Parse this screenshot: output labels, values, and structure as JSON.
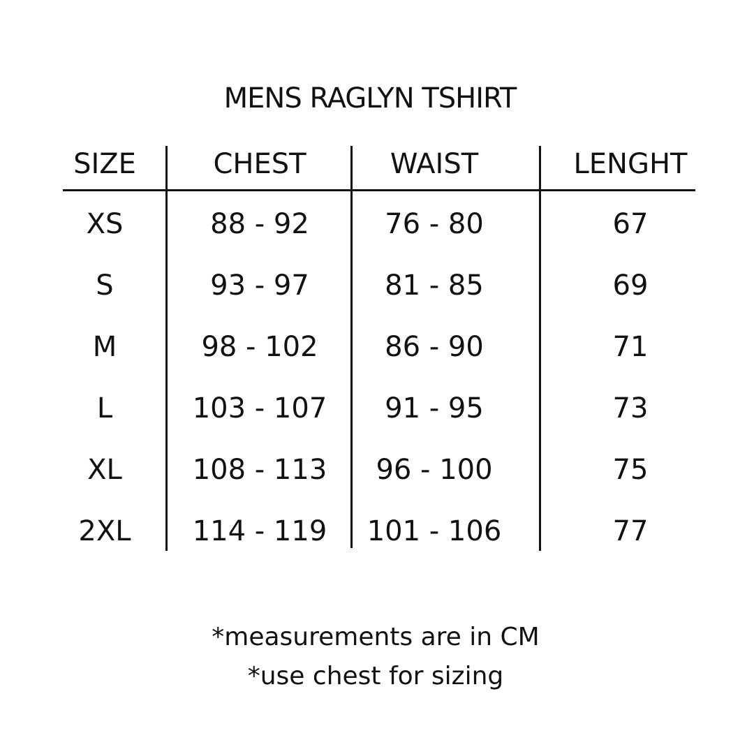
{
  "title": "MENS RAGLYN TSHIRT",
  "headers": [
    "SIZE",
    "CHEST",
    "WAIST",
    "LENGHT"
  ],
  "rows": [
    [
      "XS",
      "88 - 92",
      "76 - 80",
      "67"
    ],
    [
      "S",
      "93 - 97",
      "81 - 85",
      "69"
    ],
    [
      "M",
      "98 - 102",
      "86 - 90",
      "71"
    ],
    [
      "L",
      "103 - 107",
      "91 - 95",
      "73"
    ],
    [
      "XL",
      "108 - 113",
      "96 - 100",
      "75"
    ],
    [
      "2XL",
      "114 - 119",
      "101 - 106",
      "77"
    ]
  ],
  "notes": [
    "*measurements are in CM",
    "*use chest for sizing"
  ]
}
